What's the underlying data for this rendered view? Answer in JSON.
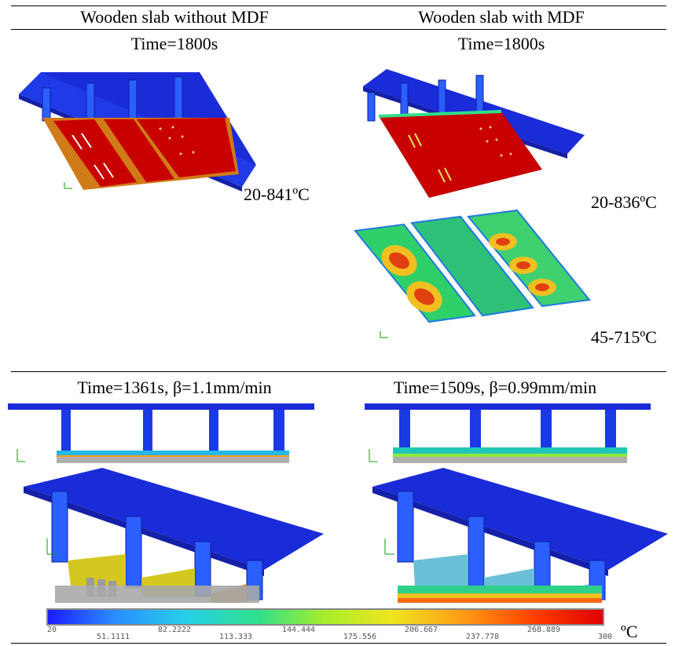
{
  "header": {
    "left_title": "Wooden slab without MDF",
    "right_title": "Wooden slab with MDF",
    "left_time": "Time=1800s",
    "right_time": "Time=1800s"
  },
  "ranges": {
    "left_slab": "20-841ºC",
    "right_slab": "20-836ºC",
    "right_beams": "45-715ºC"
  },
  "lower": {
    "left_caption": "Time=1361s, β=1.1mm/min",
    "right_caption": "Time=1509s, β=0.99mm/min"
  },
  "colorbar": {
    "ticks_top": [
      "20",
      "82.2222",
      "144.444",
      "206.667",
      "268.889"
    ],
    "ticks_bottom": [
      "51.1111",
      "113.333",
      "175.556",
      "237.778",
      "300"
    ],
    "unit": "ºC",
    "colors": [
      "#1a1aff",
      "#2a8cff",
      "#25d0e8",
      "#2fe08a",
      "#a8ee2a",
      "#f0e51f",
      "#ff9a14",
      "#ff3c00",
      "#e00000"
    ]
  }
}
